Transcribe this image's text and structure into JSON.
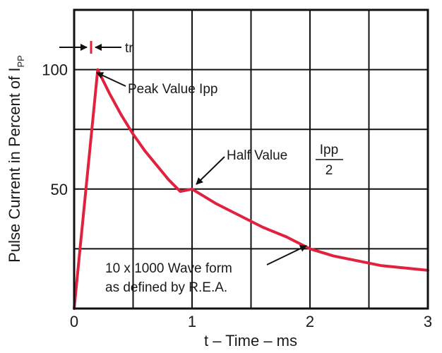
{
  "chart_data": {
    "type": "line",
    "xlabel": "t – Time – ms",
    "ylabel_main": "Pulse Current in Percent of I",
    "ylabel_sub": "PP",
    "xlim": [
      0,
      3
    ],
    "ylim": [
      0,
      125
    ],
    "x_ticks": [
      "0",
      "1",
      "2",
      "3"
    ],
    "y_ticks": [
      "50",
      "100"
    ],
    "grid": true,
    "series": [
      {
        "color": "#e0223f",
        "x": [
          0,
          0.1,
          0.15,
          0.2,
          0.3,
          0.4,
          0.5,
          0.6,
          0.7,
          0.8,
          0.9,
          1.0,
          1.2,
          1.4,
          1.6,
          1.8,
          2.0,
          2.2,
          2.4,
          2.6,
          2.8,
          3.0
        ],
        "y": [
          0,
          50,
          75,
          100,
          90,
          81,
          73,
          66,
          60,
          54,
          49,
          50,
          44,
          39,
          34,
          30,
          25,
          22,
          20,
          18,
          17,
          16
        ]
      }
    ],
    "annotations": {
      "tr": "tr",
      "peak": "Peak Value Ipp",
      "half_prefix": "Half Value",
      "half_num": "Ipp",
      "half_den": "2",
      "wave_line1": "10 x 1000 Wave form",
      "wave_line2": "as defined by R.E.A."
    }
  }
}
